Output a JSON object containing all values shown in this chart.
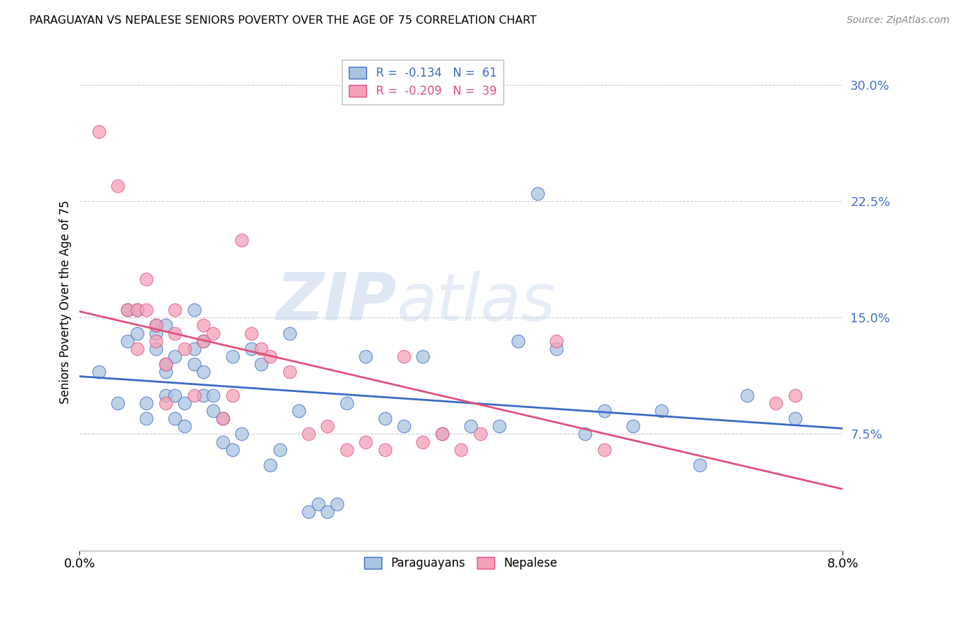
{
  "title": "PARAGUAYAN VS NEPALESE SENIORS POVERTY OVER THE AGE OF 75 CORRELATION CHART",
  "source": "Source: ZipAtlas.com",
  "ylabel": "Seniors Poverty Over the Age of 75",
  "ytick_labels": [
    "30.0%",
    "22.5%",
    "15.0%",
    "7.5%"
  ],
  "ytick_values": [
    0.3,
    0.225,
    0.15,
    0.075
  ],
  "xlim": [
    0.0,
    0.08
  ],
  "ylim": [
    0.0,
    0.32
  ],
  "legend_blue": "R =  -0.134   N =  61",
  "legend_pink": "R =  -0.209   N =  39",
  "watermark_zip": "ZIP",
  "watermark_atlas": "atlas",
  "paraguayan_color": "#aac4e0",
  "nepalese_color": "#f4a0b8",
  "trendline_blue": "#3a6bc4",
  "trendline_pink": "#e0507a",
  "tick_color": "#4472c4",
  "paraguayan_x": [
    0.002,
    0.004,
    0.005,
    0.005,
    0.006,
    0.006,
    0.007,
    0.007,
    0.008,
    0.008,
    0.008,
    0.009,
    0.009,
    0.009,
    0.009,
    0.01,
    0.01,
    0.01,
    0.011,
    0.011,
    0.012,
    0.012,
    0.012,
    0.013,
    0.013,
    0.013,
    0.014,
    0.014,
    0.015,
    0.015,
    0.016,
    0.016,
    0.017,
    0.018,
    0.019,
    0.02,
    0.021,
    0.022,
    0.023,
    0.024,
    0.025,
    0.026,
    0.027,
    0.028,
    0.03,
    0.032,
    0.034,
    0.036,
    0.038,
    0.041,
    0.044,
    0.046,
    0.048,
    0.05,
    0.053,
    0.055,
    0.058,
    0.061,
    0.065,
    0.07,
    0.075
  ],
  "paraguayan_y": [
    0.115,
    0.095,
    0.135,
    0.155,
    0.14,
    0.155,
    0.085,
    0.095,
    0.13,
    0.14,
    0.145,
    0.1,
    0.115,
    0.12,
    0.145,
    0.085,
    0.1,
    0.125,
    0.08,
    0.095,
    0.12,
    0.13,
    0.155,
    0.1,
    0.115,
    0.135,
    0.09,
    0.1,
    0.07,
    0.085,
    0.065,
    0.125,
    0.075,
    0.13,
    0.12,
    0.055,
    0.065,
    0.14,
    0.09,
    0.025,
    0.03,
    0.025,
    0.03,
    0.095,
    0.125,
    0.085,
    0.08,
    0.125,
    0.075,
    0.08,
    0.08,
    0.135,
    0.23,
    0.13,
    0.075,
    0.09,
    0.08,
    0.09,
    0.055,
    0.1,
    0.085
  ],
  "nepalese_x": [
    0.002,
    0.004,
    0.005,
    0.006,
    0.006,
    0.007,
    0.007,
    0.008,
    0.008,
    0.009,
    0.009,
    0.01,
    0.01,
    0.011,
    0.012,
    0.013,
    0.013,
    0.014,
    0.015,
    0.016,
    0.017,
    0.018,
    0.019,
    0.02,
    0.022,
    0.024,
    0.026,
    0.028,
    0.03,
    0.032,
    0.034,
    0.036,
    0.038,
    0.04,
    0.042,
    0.05,
    0.055,
    0.073,
    0.075
  ],
  "nepalese_y": [
    0.27,
    0.235,
    0.155,
    0.13,
    0.155,
    0.155,
    0.175,
    0.135,
    0.145,
    0.095,
    0.12,
    0.14,
    0.155,
    0.13,
    0.1,
    0.135,
    0.145,
    0.14,
    0.085,
    0.1,
    0.2,
    0.14,
    0.13,
    0.125,
    0.115,
    0.075,
    0.08,
    0.065,
    0.07,
    0.065,
    0.125,
    0.07,
    0.075,
    0.065,
    0.075,
    0.135,
    0.065,
    0.095,
    0.1
  ]
}
